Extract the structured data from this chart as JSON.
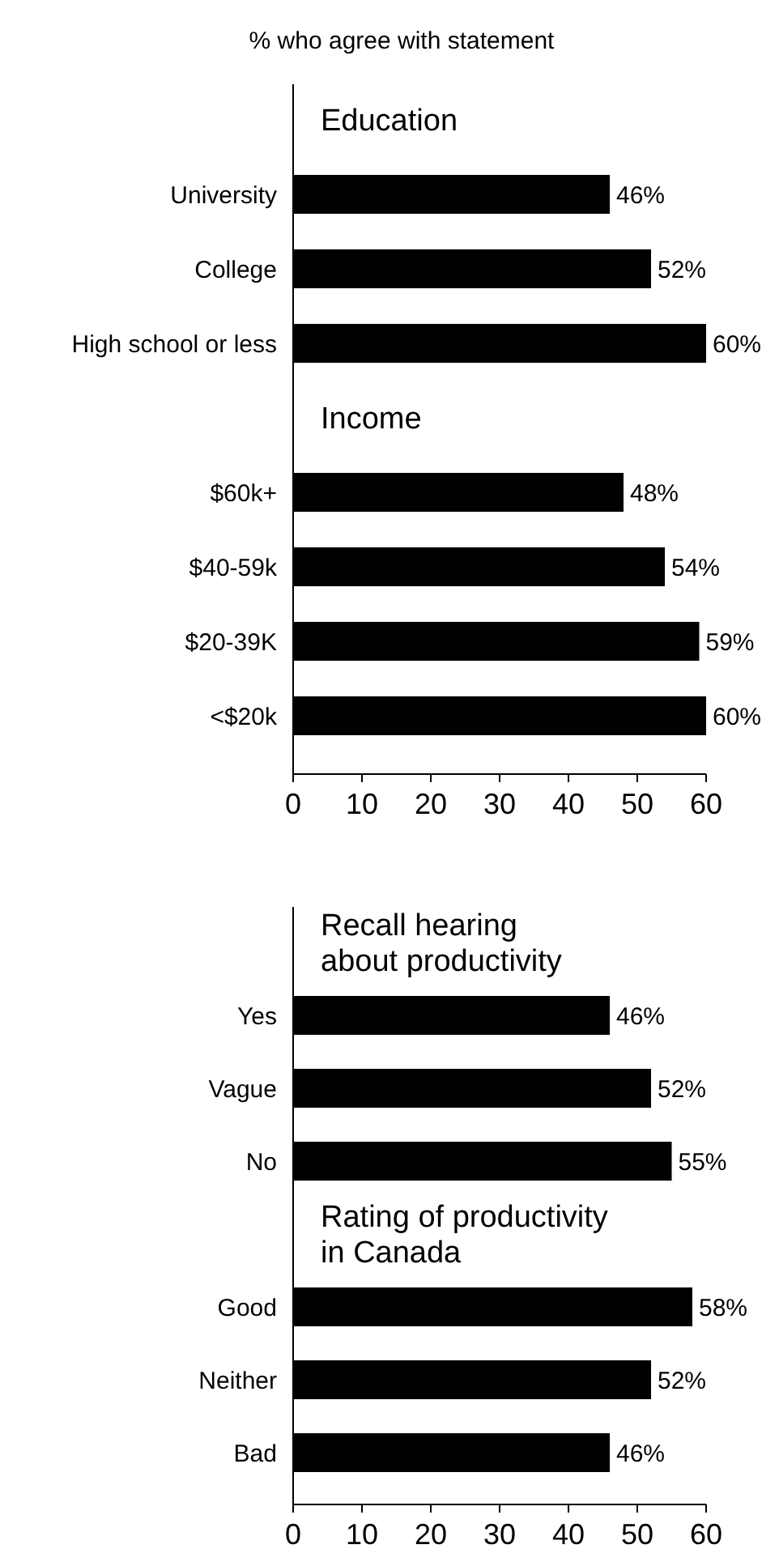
{
  "chart_data": [
    {
      "type": "bar",
      "orientation": "horizontal",
      "title": "% who agree with statement",
      "color": "#000000",
      "categories": [
        null,
        "University",
        "College",
        "High school or less",
        null,
        "$60k+",
        "$40-59k",
        "$20-39K",
        "<$20k"
      ],
      "values": [
        null,
        46,
        52,
        60,
        null,
        48,
        54,
        59,
        60
      ],
      "value_labels": [
        null,
        "46%",
        "52%",
        "60%",
        null,
        "48%",
        "54%",
        "59%",
        "60%"
      ],
      "annotations": [
        "Education",
        "Income"
      ],
      "xlim": [
        0,
        60
      ],
      "xticks": [
        0,
        10,
        20,
        30,
        40,
        50,
        60
      ]
    },
    {
      "type": "bar",
      "orientation": "horizontal",
      "color": "#000000",
      "categories": [
        null,
        "Yes",
        "Vague",
        "No",
        null,
        "Good",
        "Neither",
        "Bad"
      ],
      "values": [
        null,
        46,
        52,
        55,
        null,
        58,
        52,
        46
      ],
      "value_labels": [
        null,
        "46%",
        "52%",
        "55%",
        null,
        "58%",
        "52%",
        "46%"
      ],
      "annotations": [
        "Recall hearing\nabout productivity",
        "Rating of productivity\nin Canada"
      ],
      "xlim": [
        0,
        60
      ],
      "xticks": [
        0,
        10,
        20,
        30,
        40,
        50,
        60
      ]
    }
  ]
}
